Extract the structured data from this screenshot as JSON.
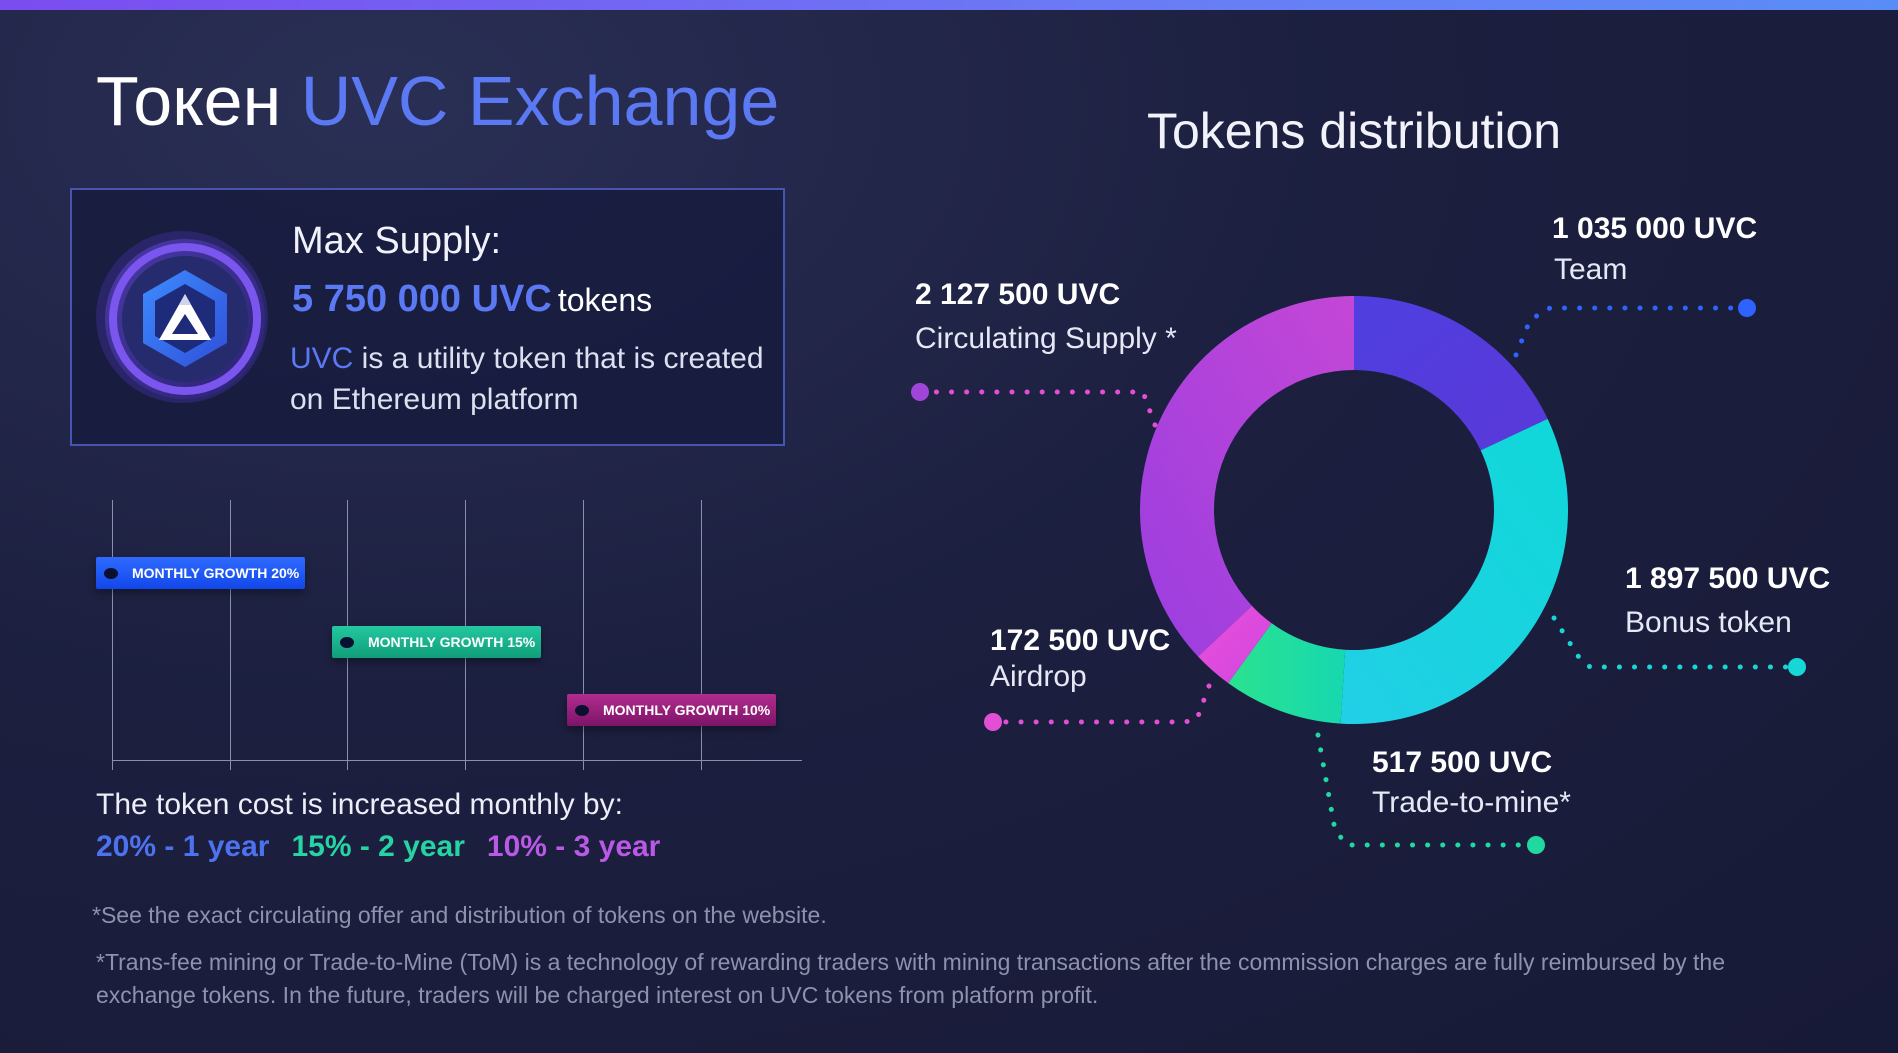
{
  "header": {
    "title_prefix": "Токен",
    "title_accent": "UVC Exchange"
  },
  "supply": {
    "label": "Max Supply:",
    "amount": "5 750 000 UVC",
    "unit": "tokens",
    "desc_accent": "UVC",
    "desc_rest": " is a utility token that is created on Ethereum platform"
  },
  "growth": {
    "badges": [
      "MONTHLY GROWTH 20%",
      "MONTHLY GROWTH 15%",
      "MONTHLY GROWTH 10%"
    ],
    "cost_text": "The token cost is increased monthly by:",
    "rates": [
      "20% - 1 year",
      "15% - 2 year",
      "10% - 3 year"
    ]
  },
  "distribution": {
    "title": "Tokens distribution",
    "total": 5750000,
    "segments": [
      {
        "amount": "1 035 000 UVC",
        "name": "Team",
        "value": 1035000,
        "color": "#5a3fe0"
      },
      {
        "amount": "1 897 500 UVC",
        "name": "Bonus token",
        "value": 1897500,
        "color": "#17d6d6"
      },
      {
        "amount": "517 500 UVC",
        "name": "Trade-to-mine*",
        "value": 517500,
        "color": "#20d9a1"
      },
      {
        "amount": "172 500 UVC",
        "name": "Airdrop",
        "value": 172500,
        "color": "#e34fd9"
      },
      {
        "amount": "2 127 500 UVC",
        "name": "Circulating Supply *",
        "value": 2127500,
        "color": "#b047d9"
      }
    ]
  },
  "footnotes": {
    "note1": "*See the exact circulating offer and distribution of tokens on the website.",
    "note2": "*Trans-fee mining or Trade-to-Mine (ToM) is a technology of rewarding traders with mining transactions after the commission charges are fully reimbursed by the exchange tokens.  In the future, traders will be charged interest on UVC tokens from platform profit."
  }
}
